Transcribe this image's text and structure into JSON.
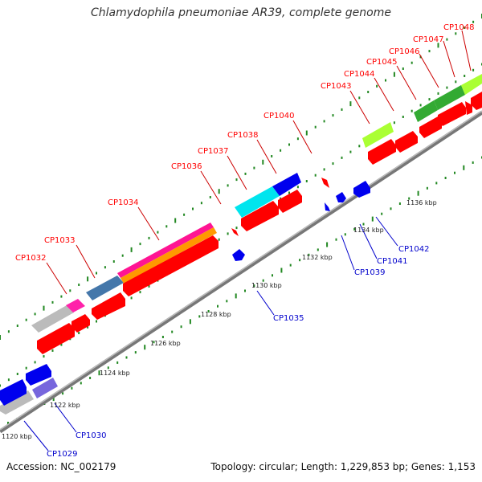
{
  "title": "Chlamydophila pneumoniae AR39, complete genome",
  "footer": {
    "accession": "Accession: NC_002179",
    "stats": "Topology: circular; Length: 1,229,853 bp; Genes: 1,153"
  },
  "colors": {
    "forward_label": "#ff0000",
    "reverse_label": "#0000cc",
    "tick": "#228822",
    "axis": "#888888"
  },
  "kbp_ticks": [
    {
      "label": "1120 kbp",
      "kbp": 1120
    },
    {
      "label": "1122 kbp",
      "kbp": 1122
    },
    {
      "label": "1124 kbp",
      "kbp": 1124
    },
    {
      "label": "1126 kbp",
      "kbp": 1126
    },
    {
      "label": "1128 kbp",
      "kbp": 1128
    },
    {
      "label": "1130 kbp",
      "kbp": 1130
    },
    {
      "label": "1132 kbp",
      "kbp": 1132
    },
    {
      "label": "1134 kbp",
      "kbp": 1134
    },
    {
      "label": "1136 kbp",
      "kbp": 1136
    }
  ],
  "forward_genes": [
    {
      "id": "CP1032",
      "start_kbp": 1126.3,
      "end_kbp": 1126.9,
      "feature_color": "#ff22aa"
    },
    {
      "id": "CP1033",
      "start_kbp": 1127.3,
      "end_kbp": 1128.1,
      "feature_color": "#4477aa"
    },
    {
      "id": "CP1034",
      "start_kbp": 1128.1,
      "end_kbp": 1131.6,
      "feature_color": "#ff1493"
    },
    {
      "id": "CP1036",
      "start_kbp": 1132.2,
      "end_kbp": 1132.3,
      "feature_color": "#ff0000"
    },
    {
      "id": "CP1037",
      "start_kbp": 1132.4,
      "end_kbp": 1133.8,
      "feature_color": "#00e5ee"
    },
    {
      "id": "CP1038",
      "start_kbp": 1133.8,
      "end_kbp": 1134.6,
      "feature_color": "#0000ee"
    },
    {
      "id": "CP1040",
      "start_kbp": 1135.9,
      "end_kbp": 1136.1,
      "feature_color": "#ff0000"
    },
    {
      "id": "CP1043",
      "start_kbp": 1137.6,
      "end_kbp": 1138.5,
      "feature_color": "#aaff33"
    },
    {
      "id": "CP1044",
      "start_kbp": 1138.6,
      "end_kbp": 1139.2,
      "feature_color": "#ff0000"
    },
    {
      "id": "CP1045",
      "start_kbp": 1139.6,
      "end_kbp": 1140.1,
      "feature_color": "#33aa33"
    },
    {
      "id": "CP1046",
      "start_kbp": 1140.1,
      "end_kbp": 1140.8,
      "feature_color": "#33aa33"
    },
    {
      "id": "CP1047",
      "start_kbp": 1140.9,
      "end_kbp": 1141.2,
      "feature_color": "#ff0000"
    },
    {
      "id": "CP1048",
      "start_kbp": 1141.2,
      "end_kbp": 1141.9,
      "feature_color": "#aaff33"
    }
  ],
  "reverse_genes": [
    {
      "id": "CP1029",
      "start_kbp": 1119.7,
      "end_kbp": 1121.0,
      "feature_color": "#bbbbbb"
    },
    {
      "id": "CP1030",
      "start_kbp": 1121.5,
      "end_kbp": 1122.3,
      "feature_color": "#7766dd"
    },
    {
      "id": "CP1035",
      "start_kbp": 1131.4,
      "end_kbp": 1131.7,
      "feature_color": "#0000ee"
    },
    {
      "id": "CP1039",
      "start_kbp": 1135.7,
      "end_kbp": 1135.8,
      "feature_color": "#0000ee"
    },
    {
      "id": "CP1041",
      "start_kbp": 1136.2,
      "end_kbp": 1136.5,
      "feature_color": "#0000ee"
    },
    {
      "id": "CP1042",
      "start_kbp": 1136.8,
      "end_kbp": 1137.4,
      "feature_color": "#0000ee"
    }
  ]
}
